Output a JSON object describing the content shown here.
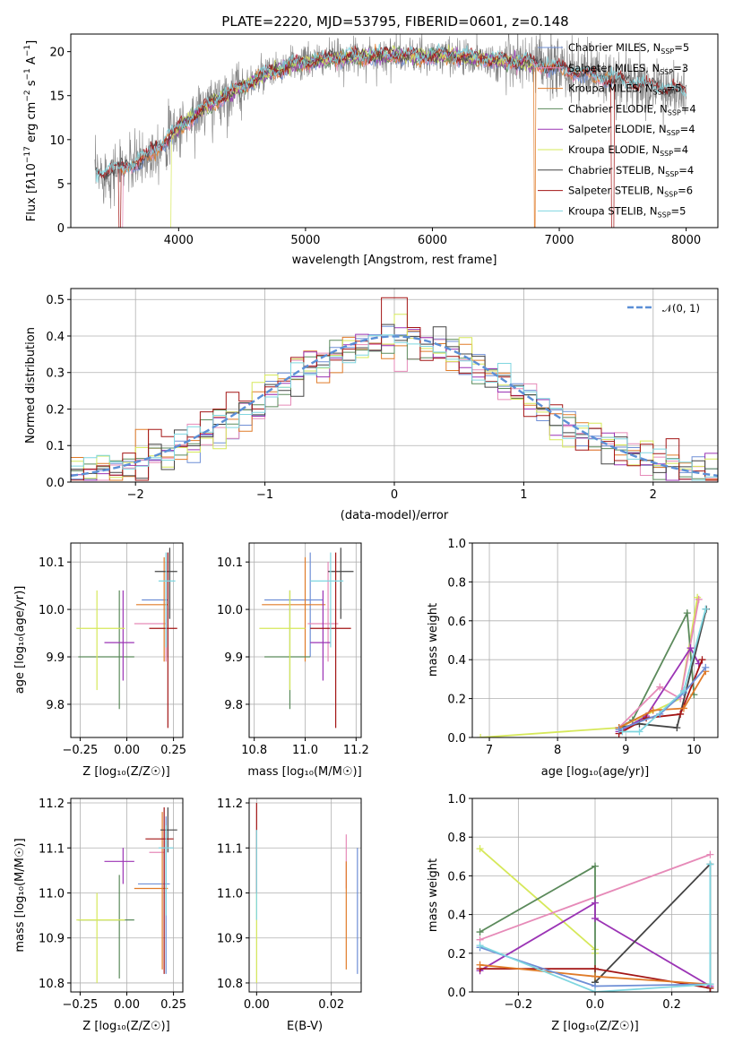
{
  "title": "PLATE=2220, MJD=53795, FIBERID=0601, z=0.148",
  "colors": {
    "Chabrier MILES": "#6f8fd6",
    "Salpeter MILES": "#e68ab8",
    "Kroupa MILES": "#e07b29",
    "Chabrier ELODIE": "#5b8a5b",
    "Salpeter ELODIE": "#9b34b5",
    "Kroupa ELODIE": "#d6e85a",
    "Chabrier STELIB": "#444444",
    "Salpeter STELIB": "#a31515",
    "Kroupa STELIB": "#7fd6e0",
    "data": "#808080",
    "normal": "#5b8fd6"
  },
  "panels": {
    "spectrum": {
      "xlabel": "wavelength [Angstrom, rest frame]",
      "ylabel": "Flux [f_λ 10^-17 erg cm^-2 s^-1 A^-1]",
      "xticks": [
        "4000",
        "5000",
        "6000",
        "7000",
        "8000"
      ],
      "yticks": [
        "0",
        "5",
        "10",
        "15",
        "20"
      ],
      "legend": [
        {
          "model": "Chabrier MILES",
          "label": "Chabrier MILES, N",
          "n": "5"
        },
        {
          "model": "Salpeter MILES",
          "label": "Salpeter MILES, N",
          "n": "3"
        },
        {
          "model": "Kroupa MILES",
          "label": "Kroupa MILES, N",
          "n": "5"
        },
        {
          "model": "Chabrier ELODIE",
          "label": "Chabrier ELODIE, N",
          "n": "4"
        },
        {
          "model": "Salpeter ELODIE",
          "label": "Salpeter ELODIE, N",
          "n": "4"
        },
        {
          "model": "Kroupa ELODIE",
          "label": "Kroupa ELODIE, N",
          "n": "4"
        },
        {
          "model": "Chabrier STELIB",
          "label": "Chabrier STELIB, N",
          "n": "4"
        },
        {
          "model": "Salpeter STELIB",
          "label": "Salpeter STELIB, N",
          "n": "6"
        },
        {
          "model": "Kroupa STELIB",
          "label": "Kroupa STELIB, N",
          "n": "5"
        }
      ]
    },
    "residuals": {
      "xlabel": "(data-model)/error",
      "ylabel": "Normed distribution",
      "xticks": [
        "−2",
        "−1",
        "0",
        "1",
        "2"
      ],
      "yticks": [
        "0.0",
        "0.1",
        "0.2",
        "0.3",
        "0.4",
        "0.5"
      ],
      "legend": "𝒩(0, 1)"
    },
    "age_vs_Z": {
      "xlabel": "Z [log₁₀(Z/Z☉)]",
      "ylabel": "age  [log₁₀(age/yr)]",
      "xticks": [
        "−0.25",
        "0.00",
        "0.25"
      ],
      "yticks": [
        "9.8",
        "9.9",
        "10.0",
        "10.1"
      ]
    },
    "age_vs_mass": {
      "xlabel": "mass [log₁₀(M/M☉)]",
      "xticks": [
        "10.8",
        "11.0",
        "11.2"
      ],
      "yticks": [
        "9.8",
        "9.9",
        "10.0",
        "10.1"
      ]
    },
    "weight_vs_age": {
      "xlabel": "age  [log₁₀(age/yr)]",
      "ylabel": "mass weight",
      "xticks": [
        "7",
        "8",
        "9",
        "10"
      ],
      "yticks": [
        "0.0",
        "0.2",
        "0.4",
        "0.6",
        "0.8",
        "1.0"
      ]
    },
    "mass_vs_Z": {
      "xlabel": "Z [log₁₀(Z/Z☉)]",
      "ylabel": "mass [log₁₀(M/M☉)]",
      "xticks": [
        "−0.25",
        "0.00",
        "0.25"
      ],
      "yticks": [
        "10.8",
        "10.9",
        "11.0",
        "11.1",
        "11.2"
      ]
    },
    "mass_vs_ebv": {
      "xlabel": "E(B-V)",
      "xticks": [
        "0.00",
        "0.02"
      ],
      "yticks": [
        "10.8",
        "10.9",
        "11.0",
        "11.1",
        "11.2"
      ]
    },
    "weight_vs_Z": {
      "xlabel": "Z [log₁₀(Z/Z☉)]",
      "ylabel": "mass weight",
      "xticks": [
        "−0.2",
        "0.0",
        "0.2"
      ],
      "yticks": [
        "0.0",
        "0.2",
        "0.4",
        "0.6",
        "0.8",
        "1.0"
      ]
    }
  },
  "chart_data": [
    {
      "type": "line",
      "title": "PLATE=2220, MJD=53795, FIBERID=0601, z=0.148",
      "xlabel": "wavelength [Angstrom, rest frame]",
      "ylabel": "Flux [f_λ 10^-17 erg cm^-2 s^-1 A^-1]",
      "xlim": [
        3150,
        8250
      ],
      "ylim": [
        0,
        22
      ],
      "continuum": {
        "x": [
          3350,
          3500,
          3700,
          3900,
          4100,
          4300,
          4500,
          4700,
          4900,
          5100,
          5300,
          5500,
          5700,
          5900,
          6100,
          6300,
          6500,
          6700,
          6900,
          7100,
          7300,
          7500,
          7700,
          7900,
          8000
        ],
        "y": [
          6.0,
          6.5,
          7.5,
          10.0,
          12.5,
          14.5,
          16.0,
          17.5,
          18.5,
          19.0,
          19.3,
          19.5,
          19.6,
          19.4,
          19.6,
          19.3,
          19.0,
          18.8,
          18.3,
          17.8,
          17.2,
          16.6,
          16.0,
          15.6,
          15.4
        ]
      },
      "legend_placement": "right"
    },
    {
      "type": "bar",
      "title": "",
      "xlabel": "(data-model)/error",
      "ylabel": "Normed distribution",
      "xlim": [
        -2.5,
        2.5
      ],
      "ylim": [
        0,
        0.53
      ],
      "bin_width": 0.1,
      "series": [
        {
          "name": "𝒩(0, 1)",
          "type": "line",
          "style": "dashed"
        }
      ],
      "legend_placement": "top-right"
    },
    {
      "type": "scatter",
      "xlabel": "Z [log₁₀(Z/Z☉)]",
      "ylabel": "age  [log₁₀(age/yr)]",
      "xlim": [
        -0.3,
        0.3
      ],
      "ylim": [
        9.73,
        10.14
      ],
      "points": [
        {
          "model": "Chabrier MILES",
          "x": 0.22,
          "y": 10.02,
          "xerr": [
            0.14,
            0.0
          ],
          "yerr": [
            0.12,
            0.1
          ]
        },
        {
          "model": "Salpeter MILES",
          "x": 0.21,
          "y": 9.97,
          "xerr": [
            0.17,
            0.0
          ],
          "yerr": [
            0.08,
            0.13
          ]
        },
        {
          "model": "Kroupa MILES",
          "x": 0.2,
          "y": 10.01,
          "xerr": [
            0.15,
            0.02
          ],
          "yerr": [
            0.12,
            0.1
          ]
        },
        {
          "model": "Chabrier ELODIE",
          "x": -0.04,
          "y": 9.9,
          "xerr": [
            0.22,
            0.08
          ],
          "yerr": [
            0.11,
            0.14
          ]
        },
        {
          "model": "Salpeter ELODIE",
          "x": -0.02,
          "y": 9.93,
          "xerr": [
            0.1,
            0.06
          ],
          "yerr": [
            0.08,
            0.11
          ]
        },
        {
          "model": "Kroupa ELODIE",
          "x": -0.16,
          "y": 9.96,
          "xerr": [
            0.11,
            0.15
          ],
          "yerr": [
            0.13,
            0.08
          ]
        },
        {
          "model": "Chabrier STELIB",
          "x": 0.23,
          "y": 10.08,
          "xerr": [
            0.08,
            0.04
          ],
          "yerr": [
            0.1,
            0.05
          ]
        },
        {
          "model": "Salpeter STELIB",
          "x": 0.22,
          "y": 9.96,
          "xerr": [
            0.1,
            0.05
          ],
          "yerr": [
            0.21,
            0.16
          ]
        },
        {
          "model": "Kroupa STELIB",
          "x": 0.21,
          "y": 10.06,
          "xerr": [
            0.04,
            0.05
          ],
          "yerr": [
            0.14,
            0.06
          ]
        }
      ]
    },
    {
      "type": "scatter",
      "xlabel": "mass [log₁₀(M/M☉)]",
      "xlim": [
        10.78,
        11.22
      ],
      "ylim": [
        9.73,
        10.14
      ],
      "points": [
        {
          "model": "Chabrier MILES",
          "x": 11.02,
          "y": 10.02,
          "xerr": [
            0.18,
            0.05
          ],
          "yerr": [
            0.12,
            0.1
          ]
        },
        {
          "model": "Salpeter MILES",
          "x": 11.09,
          "y": 9.97,
          "xerr": [
            0.08,
            0.04
          ],
          "yerr": [
            0.08,
            0.13
          ]
        },
        {
          "model": "Kroupa MILES",
          "x": 11.0,
          "y": 10.01,
          "xerr": [
            0.17,
            0.08
          ],
          "yerr": [
            0.12,
            0.1
          ]
        },
        {
          "model": "Chabrier ELODIE",
          "x": 10.94,
          "y": 9.9,
          "xerr": [
            0.1,
            0.08
          ],
          "yerr": [
            0.11,
            0.14
          ]
        },
        {
          "model": "Salpeter ELODIE",
          "x": 11.07,
          "y": 9.93,
          "xerr": [
            0.05,
            0.03
          ],
          "yerr": [
            0.08,
            0.11
          ]
        },
        {
          "model": "Kroupa ELODIE",
          "x": 10.94,
          "y": 9.96,
          "xerr": [
            0.12,
            0.06
          ],
          "yerr": [
            0.13,
            0.08
          ]
        },
        {
          "model": "Chabrier STELIB",
          "x": 11.14,
          "y": 10.08,
          "xerr": [
            0.05,
            0.05
          ],
          "yerr": [
            0.1,
            0.05
          ]
        },
        {
          "model": "Salpeter STELIB",
          "x": 11.12,
          "y": 9.96,
          "xerr": [
            0.1,
            0.06
          ],
          "yerr": [
            0.21,
            0.16
          ]
        },
        {
          "model": "Kroupa STELIB",
          "x": 11.1,
          "y": 10.06,
          "xerr": [
            0.08,
            0.05
          ],
          "yerr": [
            0.14,
            0.06
          ]
        }
      ]
    },
    {
      "type": "line",
      "xlabel": "age  [log₁₀(age/yr)]",
      "ylabel": "mass weight",
      "xlim": [
        6.75,
        10.35
      ],
      "ylim": [
        0,
        1
      ],
      "series": [
        {
          "model": "Kroupa ELODIE",
          "x": [
            6.87,
            8.9,
            9.8,
            10.05
          ],
          "y": [
            0.0,
            0.05,
            0.2,
            0.72
          ]
        },
        {
          "model": "Chabrier ELODIE",
          "x": [
            8.9,
            9.1,
            9.9,
            10.0
          ],
          "y": [
            0.05,
            0.09,
            0.64,
            0.22
          ]
        },
        {
          "model": "Salpeter MILES",
          "x": [
            8.9,
            9.5,
            9.8,
            10.07
          ],
          "y": [
            0.05,
            0.26,
            0.2,
            0.71
          ]
        },
        {
          "model": "Salpeter ELODIE",
          "x": [
            8.9,
            9.3,
            9.95,
            10.07
          ],
          "y": [
            0.03,
            0.11,
            0.46,
            0.38
          ]
        },
        {
          "model": "Chabrier STELIB",
          "x": [
            8.9,
            9.2,
            9.75,
            10.18
          ],
          "y": [
            0.05,
            0.07,
            0.05,
            0.66
          ]
        },
        {
          "model": "Salpeter STELIB",
          "x": [
            8.9,
            9.3,
            9.8,
            10.12
          ],
          "y": [
            0.02,
            0.1,
            0.12,
            0.4
          ]
        },
        {
          "model": "Kroupa MILES",
          "x": [
            8.9,
            9.4,
            9.85,
            10.17
          ],
          "y": [
            0.05,
            0.14,
            0.15,
            0.34
          ]
        },
        {
          "model": "Chabrier MILES",
          "x": [
            8.9,
            9.5,
            9.85,
            10.17
          ],
          "y": [
            0.04,
            0.12,
            0.23,
            0.36
          ]
        },
        {
          "model": "Kroupa STELIB",
          "x": [
            8.95,
            9.2,
            9.85,
            10.17
          ],
          "y": [
            0.03,
            0.03,
            0.24,
            0.66
          ]
        }
      ]
    },
    {
      "type": "scatter",
      "xlabel": "Z [log₁₀(Z/Z☉)]",
      "ylabel": "mass [log₁₀(M/M☉)]",
      "xlim": [
        -0.3,
        0.3
      ],
      "ylim": [
        10.78,
        11.21
      ],
      "points": [
        {
          "model": "Chabrier MILES",
          "x": 0.21,
          "y": 11.02,
          "xerr": [
            0.15,
            0.02
          ],
          "yerr": [
            0.2,
            0.15
          ]
        },
        {
          "model": "Salpeter MILES",
          "x": 0.2,
          "y": 11.09,
          "xerr": [
            0.08,
            0.0
          ],
          "yerr": [
            0.08,
            0.05
          ]
        },
        {
          "model": "Kroupa MILES",
          "x": 0.19,
          "y": 11.01,
          "xerr": [
            0.15,
            0.03
          ],
          "yerr": [
            0.18,
            0.17
          ]
        },
        {
          "model": "Chabrier ELODIE",
          "x": -0.04,
          "y": 10.94,
          "xerr": [
            0.22,
            0.08
          ],
          "yerr": [
            0.13,
            0.1
          ]
        },
        {
          "model": "Salpeter ELODIE",
          "x": -0.02,
          "y": 11.07,
          "xerr": [
            0.1,
            0.06
          ],
          "yerr": [
            0.05,
            0.03
          ]
        },
        {
          "model": "Kroupa ELODIE",
          "x": -0.16,
          "y": 10.94,
          "xerr": [
            0.11,
            0.15
          ],
          "yerr": [
            0.14,
            0.06
          ]
        },
        {
          "model": "Chabrier STELIB",
          "x": 0.22,
          "y": 11.14,
          "xerr": [
            0.04,
            0.05
          ],
          "yerr": [
            0.05,
            0.05
          ]
        },
        {
          "model": "Salpeter STELIB",
          "x": 0.2,
          "y": 11.12,
          "xerr": [
            0.1,
            0.05
          ],
          "yerr": [
            0.3,
            0.07
          ]
        },
        {
          "model": "Kroupa STELIB",
          "x": 0.21,
          "y": 11.1,
          "xerr": [
            0.04,
            0.04
          ],
          "yerr": [
            0.15,
            0.05
          ]
        }
      ]
    },
    {
      "type": "scatter",
      "xlabel": "E(B-V)",
      "xlim": [
        -0.002,
        0.028
      ],
      "ylim": [
        10.78,
        11.21
      ],
      "points": [
        {
          "model": "Chabrier MILES",
          "x": 0.027,
          "y": 10.95,
          "yerr": [
            0.13,
            0.15
          ]
        },
        {
          "model": "Salpeter MILES",
          "x": 0.024,
          "y": 11.07,
          "yerr": [
            0.06,
            0.06
          ]
        },
        {
          "model": "Kroupa MILES",
          "x": 0.024,
          "y": 10.95,
          "yerr": [
            0.12,
            0.12
          ]
        },
        {
          "model": "Salpeter STELIB",
          "x": 0.0,
          "y": 11.1,
          "yerr": [
            0.1,
            0.1
          ]
        },
        {
          "model": "Kroupa ELODIE",
          "x": 0.0,
          "y": 10.9,
          "yerr": [
            0.1,
            0.1
          ]
        },
        {
          "model": "Kroupa STELIB",
          "x": 0.0,
          "y": 11.04,
          "yerr": [
            0.1,
            0.1
          ]
        }
      ]
    },
    {
      "type": "line",
      "xlabel": "Z [log₁₀(Z/Z☉)]",
      "ylabel": "mass weight",
      "xlim": [
        -0.32,
        0.32
      ],
      "ylim": [
        0,
        1
      ],
      "series": [
        {
          "model": "Kroupa ELODIE",
          "x": [
            -0.3,
            0.0,
            0.0
          ],
          "y": [
            0.74,
            0.22,
            0.2
          ]
        },
        {
          "model": "Salpeter MILES",
          "x": [
            -0.3,
            0.3
          ],
          "y": [
            0.27,
            0.71
          ]
        },
        {
          "model": "Chabrier ELODIE",
          "x": [
            -0.3,
            0.0,
            0.0
          ],
          "y": [
            0.31,
            0.65,
            0.05
          ]
        },
        {
          "model": "Salpeter ELODIE",
          "x": [
            -0.3,
            0.0,
            0.0,
            0.3
          ],
          "y": [
            0.11,
            0.46,
            0.38,
            0.03
          ]
        },
        {
          "model": "Chabrier STELIB",
          "x": [
            0.0,
            0.3,
            0.3
          ],
          "y": [
            0.05,
            0.66,
            0.0
          ]
        },
        {
          "model": "Salpeter STELIB",
          "x": [
            -0.3,
            0.0,
            0.3
          ],
          "y": [
            0.12,
            0.12,
            0.02
          ]
        },
        {
          "model": "Kroupa MILES",
          "x": [
            -0.3,
            0.0,
            0.3
          ],
          "y": [
            0.14,
            0.08,
            0.04
          ]
        },
        {
          "model": "Chabrier MILES",
          "x": [
            -0.3,
            0.0,
            0.3
          ],
          "y": [
            0.23,
            0.03,
            0.04
          ]
        },
        {
          "model": "Kroupa STELIB",
          "x": [
            -0.3,
            0.0,
            0.3,
            0.3
          ],
          "y": [
            0.24,
            0.0,
            0.04,
            0.66
          ]
        }
      ]
    }
  ]
}
